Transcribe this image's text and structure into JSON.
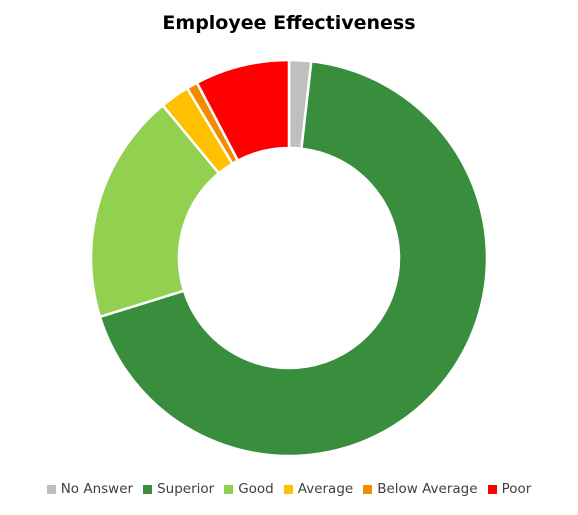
{
  "chart_data": {
    "type": "pie",
    "subtype": "doughnut",
    "title": "Employee Effectiveness",
    "categories": [
      "No Answer",
      "Superior",
      "Good",
      "Average",
      "Below Average",
      "Poor"
    ],
    "values": [
      1.8,
      68.4,
      18.8,
      2.4,
      0.9,
      7.7
    ],
    "colors": [
      "#BFBFBF",
      "#388E3C",
      "#92D050",
      "#FFC000",
      "#F28B00",
      "#FF0000"
    ],
    "legend_position": "bottom",
    "start_angle_deg": 0,
    "direction": "clockwise"
  }
}
